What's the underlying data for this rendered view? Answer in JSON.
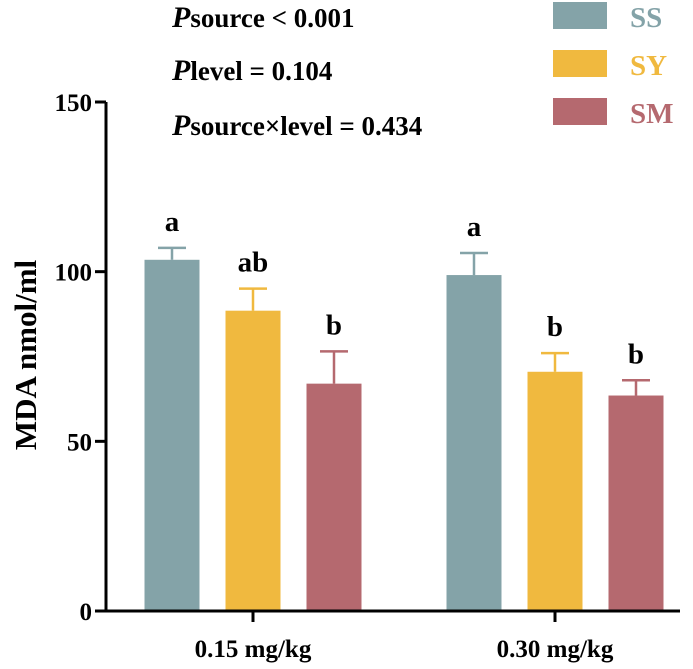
{
  "chart_data": {
    "type": "bar",
    "categories": [
      "0.15 mg/kg",
      "0.30 mg/kg"
    ],
    "series": [
      {
        "name": "SS",
        "color": "#84a3a8",
        "values": [
          103.5,
          99.0
        ],
        "errors": [
          3.5,
          6.5
        ],
        "labels": [
          "a",
          "a"
        ]
      },
      {
        "name": "SY",
        "color": "#f0b93f",
        "values": [
          88.5,
          70.5
        ],
        "errors": [
          6.5,
          5.5
        ],
        "labels": [
          "ab",
          "b"
        ]
      },
      {
        "name": "SM",
        "color": "#b5696f",
        "values": [
          67.0,
          63.5
        ],
        "errors": [
          9.5,
          4.5
        ],
        "labels": [
          "b",
          "b"
        ]
      }
    ],
    "ylabel": "MDA nmol/ml",
    "xlabel": "",
    "ylim": [
      0,
      150
    ],
    "yticks": [
      0,
      50,
      100,
      150
    ],
    "grid": false,
    "legend": "top-right",
    "annotations": [
      {
        "italic": "P",
        "rest": "source < 0.001"
      },
      {
        "italic": "P",
        "rest": "level = 0.104"
      },
      {
        "italic": "P",
        "rest": "source×level = 0.434"
      }
    ]
  }
}
